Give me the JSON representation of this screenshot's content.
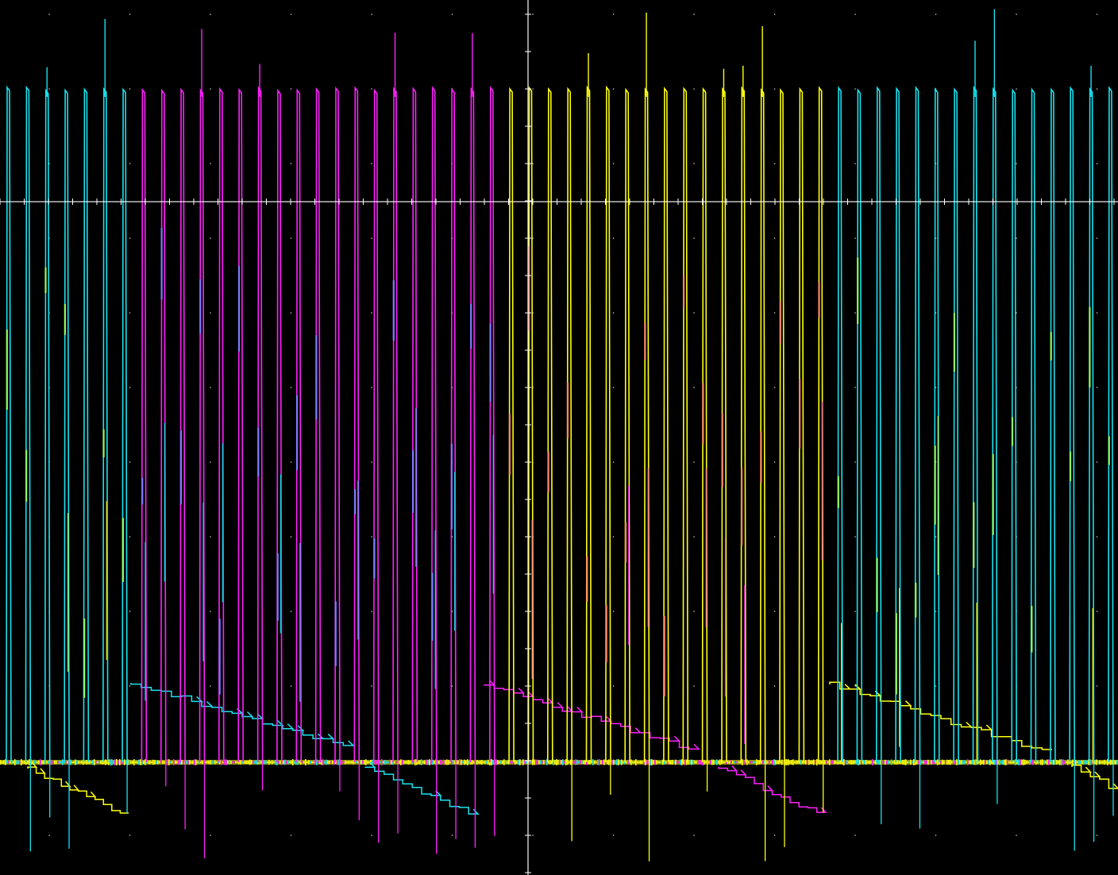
{
  "colors": {
    "background": "#000000",
    "graticule": "#ffffff",
    "channel_cyan": "#19e3f0",
    "channel_magenta": "#ff22ff",
    "channel_yellow": "#ffff10",
    "markers_blue": "#7b7bff",
    "markers_orange": "#ff8866",
    "markers_green": "#8ffc60"
  },
  "phases": [
    {
      "name": "cyan",
      "t_from": 0.0,
      "t_to": 0.12
    },
    {
      "name": "magenta",
      "t_from": 0.12,
      "t_to": 0.44
    },
    {
      "name": "yellow",
      "t_from": 0.44,
      "t_to": 0.74
    },
    {
      "name": "cyan",
      "t_from": 0.74,
      "t_to": 1.0
    }
  ]
}
